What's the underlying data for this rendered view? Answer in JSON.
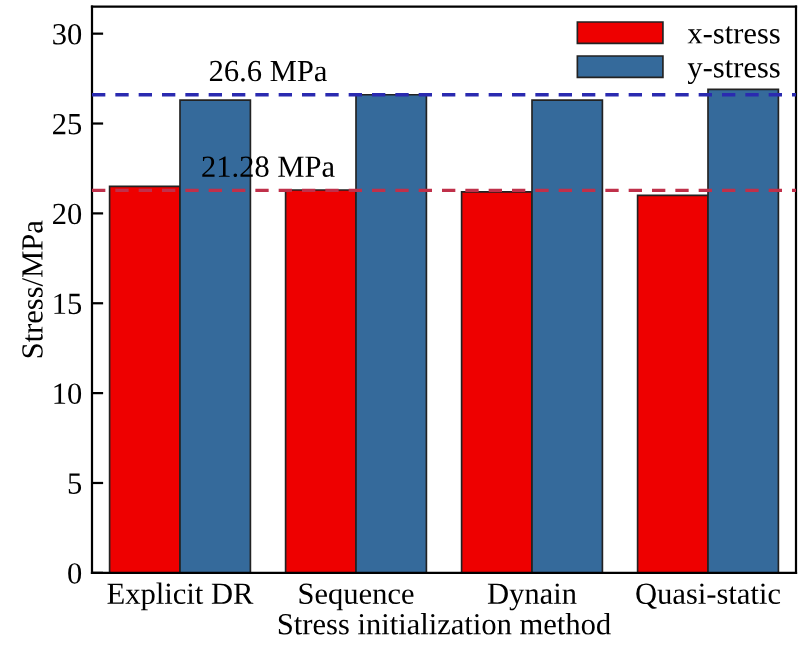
{
  "chart_data": {
    "type": "bar",
    "xlabel": "Stress initialization method",
    "ylabel": "Stress/MPa",
    "categories": [
      "Explicit DR",
      "Sequence",
      "Dynain",
      "Quasi-static"
    ],
    "series": [
      {
        "name": "x-stress",
        "color": "#ee0000",
        "values": [
          21.5,
          21.3,
          21.2,
          21.0
        ]
      },
      {
        "name": "y-stress",
        "color": "#356a9b",
        "values": [
          26.3,
          26.6,
          26.3,
          26.9
        ]
      }
    ],
    "ylim": [
      0,
      31.5
    ],
    "yticks": [
      0,
      5,
      10,
      15,
      20,
      25,
      30
    ],
    "ref_lines": [
      {
        "axis": "y",
        "value": 26.6,
        "label": "26.6 MPa",
        "color": "#2a2ab0",
        "line_style": "dashed"
      },
      {
        "axis": "y",
        "value": 21.28,
        "label": "21.28 MPa",
        "color": "#c0304a",
        "line_style": "dashed"
      }
    ],
    "legend": "top right",
    "grid": false
  }
}
